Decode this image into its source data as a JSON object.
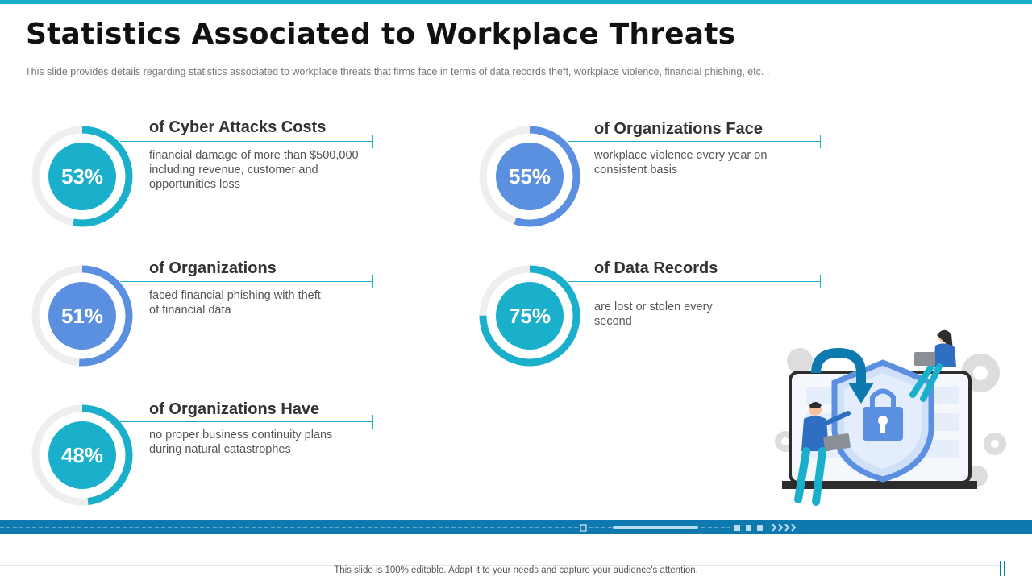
{
  "slide": {
    "title": "Statistics Associated to Workplace Threats",
    "subtitle": "This slide provides  details regarding  statistics associated to workplace threats that firms face in terms of data records theft, workplace violence,  financial phishing,  etc. .",
    "footer": "This slide is 100% editable. Adapt it to your needs and capture your audience's attention."
  },
  "stats": [
    {
      "value": "53%",
      "level": 0.53,
      "color": "#1ab0cc",
      "heading": "of Cyber Attacks Costs",
      "lines": [
        "financial damage of more than $500,000",
        "including revenue, customer and",
        "opportunities loss"
      ]
    },
    {
      "value": "51%",
      "level": 0.51,
      "color": "#5b8fe0",
      "heading": "of Organizations",
      "lines": [
        "faced financial phishing with theft",
        "of financial data"
      ]
    },
    {
      "value": "48%",
      "level": 0.48,
      "color": "#1ab0cc",
      "heading": "of Organizations Have",
      "lines": [
        "no proper business continuity plans",
        "during natural catastrophes"
      ]
    },
    {
      "value": "55%",
      "level": 0.55,
      "color": "#5b8fe0",
      "heading": "of Organizations Face",
      "lines": [
        "workplace violence every year on",
        "consistent basis"
      ]
    },
    {
      "value": "75%",
      "level": 0.75,
      "color": "#1ab0cc",
      "heading": "of Data Records",
      "lines": [
        "are lost or stolen every",
        "second"
      ]
    }
  ]
}
